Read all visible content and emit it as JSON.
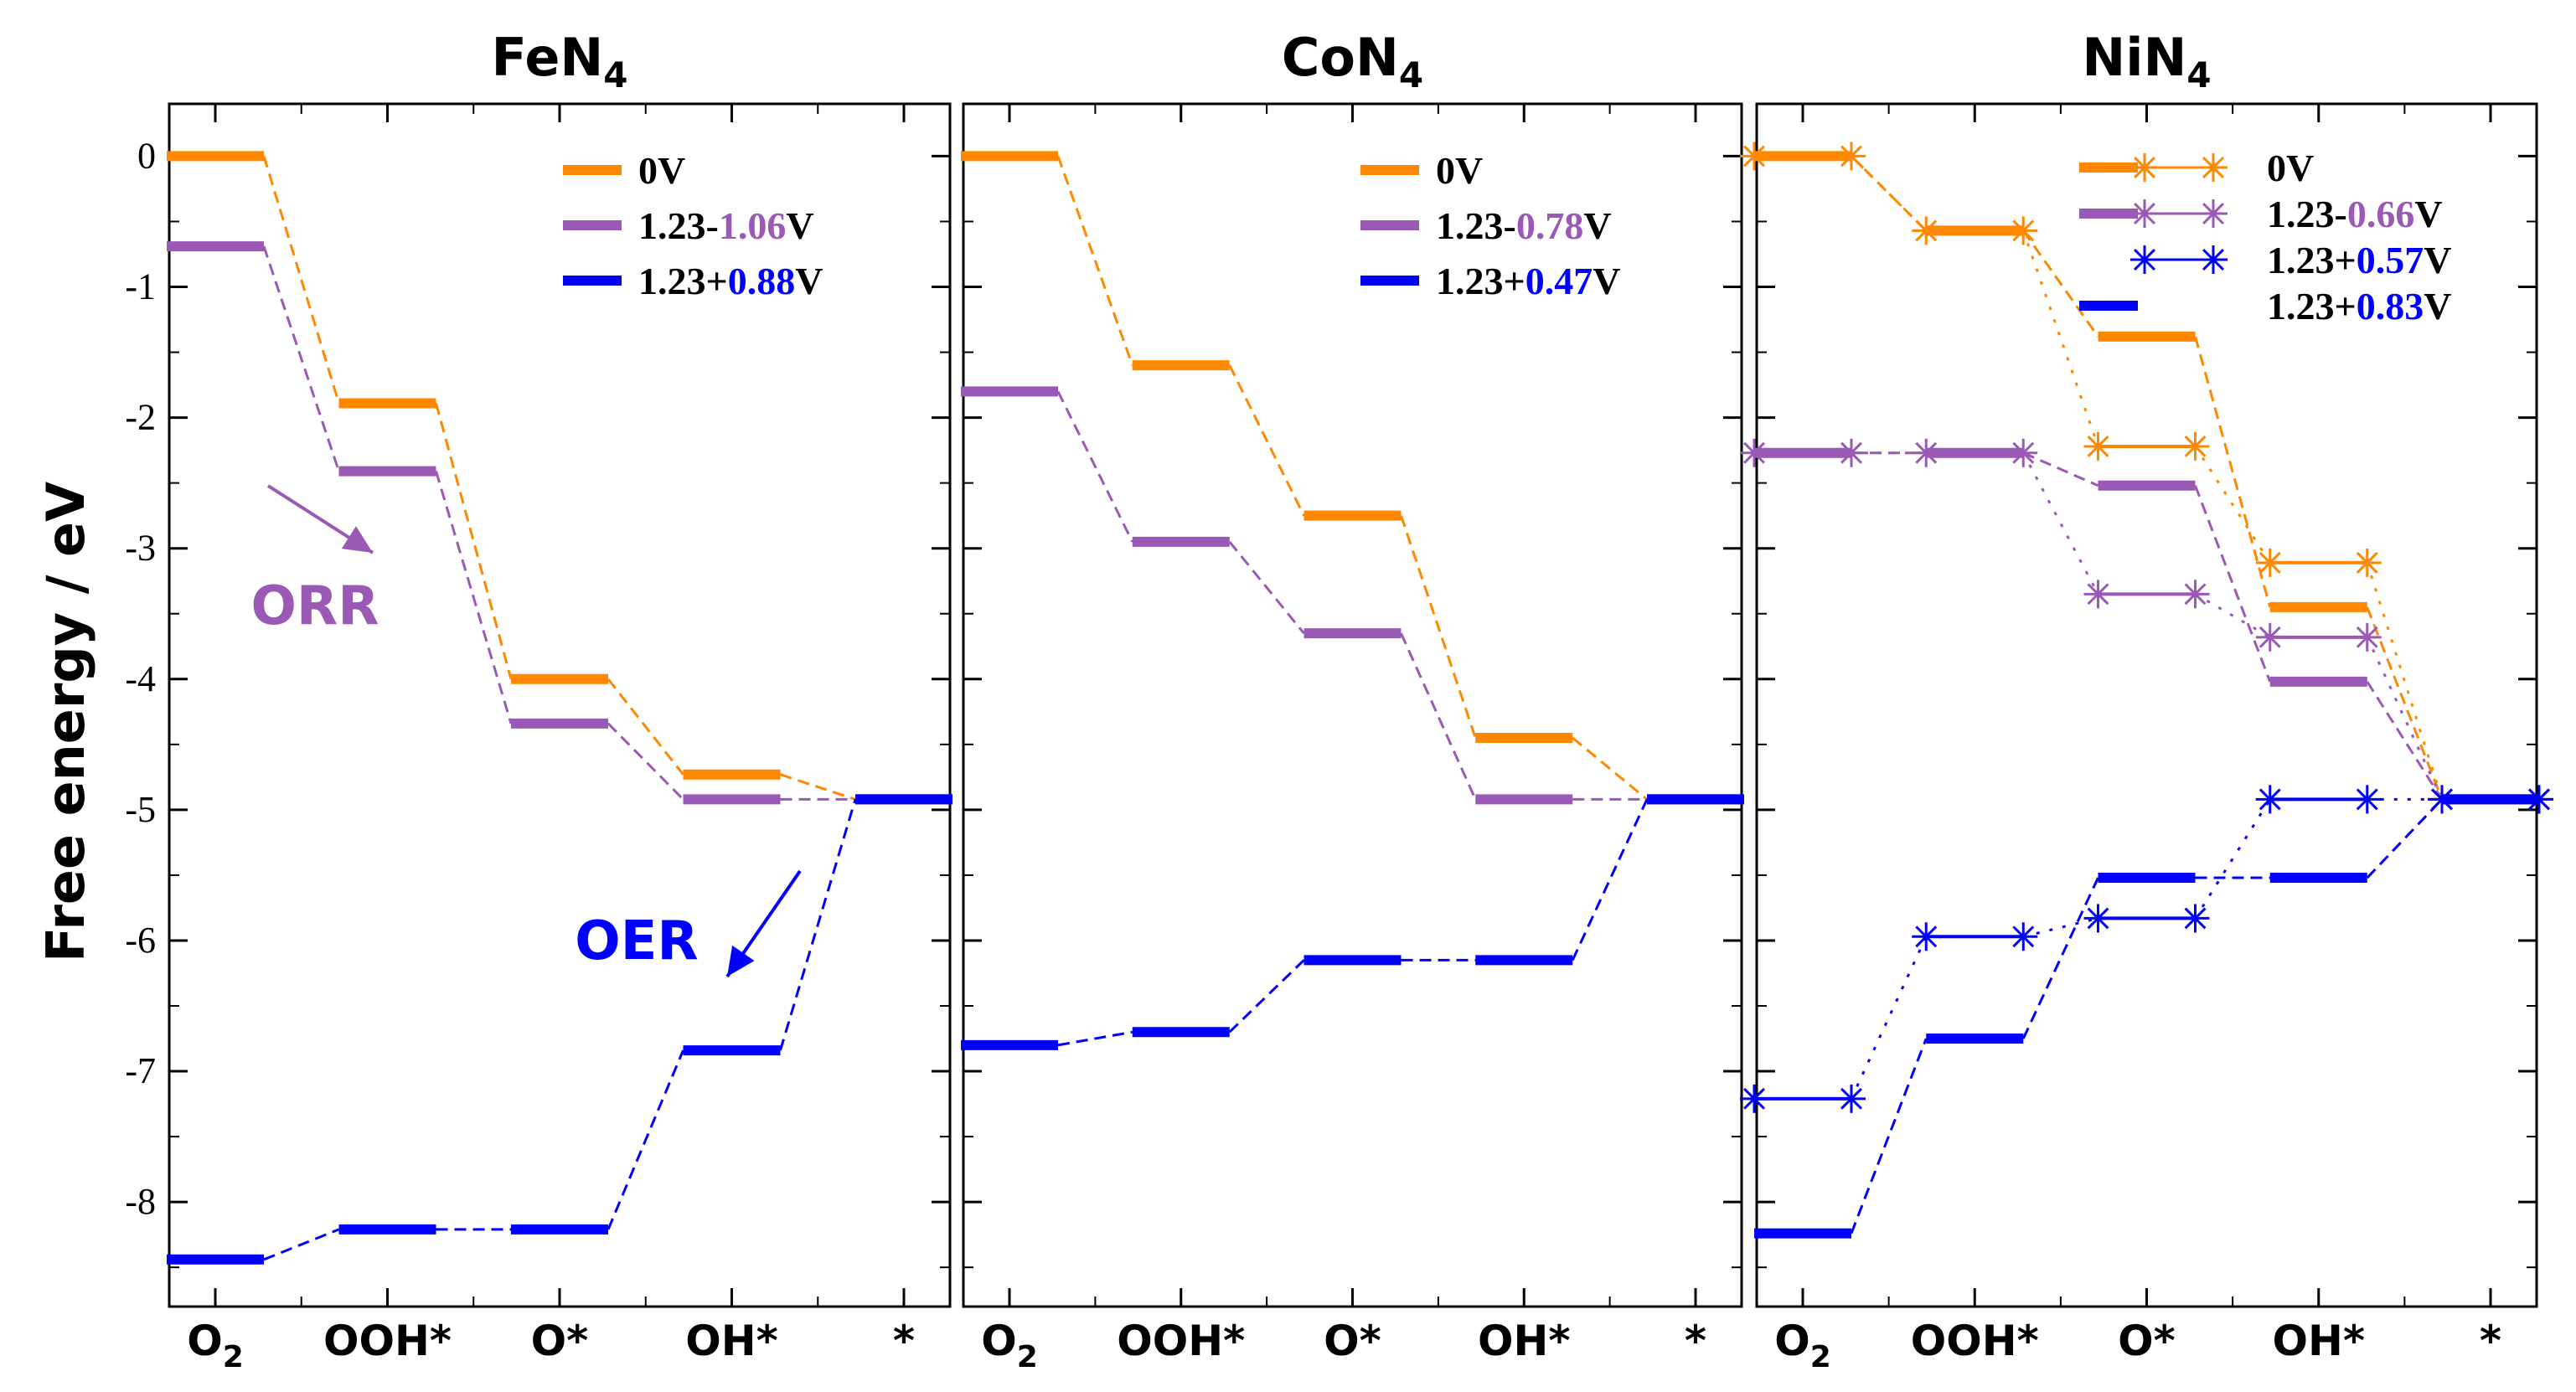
{
  "chart_data": {
    "type": "line",
    "ylabel": "Free energy / eV",
    "ylim": [
      -8.8,
      0.4
    ],
    "yticks": [
      0,
      -1,
      -2,
      -3,
      -4,
      -5,
      -6,
      -7,
      -8
    ],
    "ytick_labels": [
      "0",
      "-1",
      "-2",
      "-3",
      "-4",
      "-5",
      "-6",
      "-7",
      "-8"
    ],
    "categories": [
      "O",
      "OOH*",
      "O*",
      "OH*",
      "*"
    ],
    "category_subscripts": [
      "2",
      "",
      "",
      "",
      ""
    ],
    "colors": {
      "orange": "#ff8800",
      "purple": "#9b59b6",
      "blue": "#0000ff"
    },
    "panels": [
      {
        "title": "FeN",
        "title_sub": "4",
        "series": [
          {
            "name": "0V",
            "label_parts": [
              {
                "text": "0V",
                "color": "#000000"
              }
            ],
            "color": "#ff8800",
            "values": [
              0,
              -1.89,
              -4.0,
              -4.73,
              -4.92
            ],
            "style": "dashed",
            "markers": false
          },
          {
            "name": "1.23-1.06V",
            "label_parts": [
              {
                "text": "1.23-",
                "color": "#000000"
              },
              {
                "text": "1.06",
                "color": "#9b59b6"
              },
              {
                "text": "V",
                "color": "#000000"
              }
            ],
            "color": "#9b59b6",
            "values": [
              -0.69,
              -2.41,
              -4.34,
              -4.92,
              -4.92
            ],
            "style": "dashed",
            "markers": false
          },
          {
            "name": "1.23+0.88V",
            "label_parts": [
              {
                "text": "1.23+",
                "color": "#000000"
              },
              {
                "text": "0.88",
                "color": "#0000ff"
              },
              {
                "text": "V",
                "color": "#000000"
              }
            ],
            "color": "#0000ff",
            "values": [
              -8.44,
              -8.21,
              -8.21,
              -6.84,
              -4.92
            ],
            "style": "dashed",
            "markers": false
          }
        ],
        "annotations": [
          {
            "text": "ORR",
            "color": "#9b59b6"
          },
          {
            "text": "OER",
            "color": "#0000ff"
          }
        ]
      },
      {
        "title": "CoN",
        "title_sub": "4",
        "series": [
          {
            "name": "0V",
            "label_parts": [
              {
                "text": "0V",
                "color": "#000000"
              }
            ],
            "color": "#ff8800",
            "values": [
              0,
              -1.6,
              -2.75,
              -4.45,
              -4.92
            ],
            "style": "dashed",
            "markers": false
          },
          {
            "name": "1.23-0.78V",
            "label_parts": [
              {
                "text": "1.23-",
                "color": "#000000"
              },
              {
                "text": "0.78",
                "color": "#9b59b6"
              },
              {
                "text": "V",
                "color": "#000000"
              }
            ],
            "color": "#9b59b6",
            "values": [
              -1.8,
              -2.95,
              -3.65,
              -4.92,
              -4.92
            ],
            "style": "dashed",
            "markers": false
          },
          {
            "name": "1.23+0.47V",
            "label_parts": [
              {
                "text": "1.23+",
                "color": "#000000"
              },
              {
                "text": "0.47",
                "color": "#0000ff"
              },
              {
                "text": "V",
                "color": "#000000"
              }
            ],
            "color": "#0000ff",
            "values": [
              -6.8,
              -6.7,
              -6.15,
              -6.15,
              -4.92
            ],
            "style": "dashed",
            "markers": false
          }
        ],
        "annotations": []
      },
      {
        "title": "NiN",
        "title_sub": "4",
        "series": [
          {
            "name": "0V-dashed",
            "label_parts": [
              {
                "text": "0V",
                "color": "#000000"
              }
            ],
            "color": "#ff8800",
            "values": [
              0,
              -0.57,
              -1.38,
              -3.45,
              -4.92
            ],
            "style": "dashed",
            "markers": false
          },
          {
            "name": "0V-dotted",
            "label_parts": [],
            "color": "#ff8800",
            "values": [
              0,
              -0.57,
              -2.22,
              -3.11,
              -4.92
            ],
            "style": "dotted",
            "markers": true
          },
          {
            "name": "1.23-0.66V-dashed",
            "label_parts": [
              {
                "text": "1.23-",
                "color": "#000000"
              },
              {
                "text": "0.66",
                "color": "#9b59b6"
              },
              {
                "text": "V",
                "color": "#000000"
              }
            ],
            "color": "#9b59b6",
            "values": [
              -2.27,
              -2.27,
              -2.52,
              -4.02,
              -4.92
            ],
            "style": "dashed",
            "markers": false
          },
          {
            "name": "1.23-0.66V-dotted",
            "label_parts": [],
            "color": "#9b59b6",
            "values": [
              -2.27,
              -2.27,
              -3.35,
              -3.68,
              -4.92
            ],
            "style": "dotted",
            "markers": true
          },
          {
            "name": "1.23+0.57V",
            "label_parts": [
              {
                "text": "1.23+",
                "color": "#000000"
              },
              {
                "text": "0.57",
                "color": "#0000ff"
              },
              {
                "text": "V",
                "color": "#000000"
              }
            ],
            "color": "#0000ff",
            "values": [
              -7.21,
              -5.97,
              -5.83,
              -4.92,
              -4.92
            ],
            "style": "dotted",
            "markers": true
          },
          {
            "name": "1.23+0.83V",
            "label_parts": [
              {
                "text": "1.23+",
                "color": "#000000"
              },
              {
                "text": "0.83",
                "color": "#0000ff"
              },
              {
                "text": "V",
                "color": "#000000"
              }
            ],
            "color": "#0000ff",
            "values": [
              -8.24,
              -6.75,
              -5.52,
              -5.52,
              -4.92
            ],
            "style": "dashed",
            "markers": false
          }
        ],
        "legend": [
          {
            "label_parts": [
              {
                "text": "0V",
                "color": "#000000"
              }
            ],
            "color": "#ff8800",
            "bar": true,
            "marker": true
          },
          {
            "label_parts": [
              {
                "text": "1.23-",
                "color": "#000000"
              },
              {
                "text": "0.66",
                "color": "#9b59b6"
              },
              {
                "text": "V",
                "color": "#000000"
              }
            ],
            "color": "#9b59b6",
            "bar": true,
            "marker": true
          },
          {
            "label_parts": [
              {
                "text": "1.23+",
                "color": "#000000"
              },
              {
                "text": "0.57",
                "color": "#0000ff"
              },
              {
                "text": "V",
                "color": "#000000"
              }
            ],
            "color": "#0000ff",
            "bar": false,
            "marker": true
          },
          {
            "label_parts": [
              {
                "text": "1.23+",
                "color": "#000000"
              },
              {
                "text": "0.83",
                "color": "#0000ff"
              },
              {
                "text": "V",
                "color": "#000000"
              }
            ],
            "color": "#0000ff",
            "bar": true,
            "marker": false
          }
        ],
        "annotations": []
      }
    ]
  }
}
